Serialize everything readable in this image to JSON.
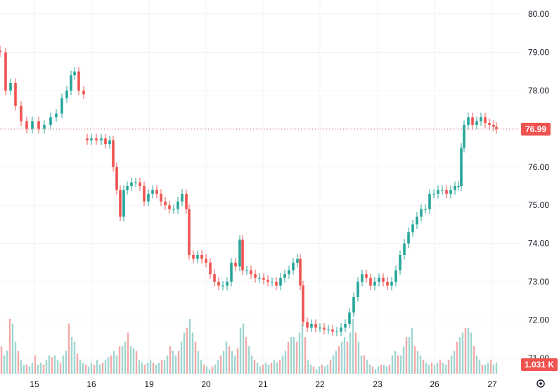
{
  "chart_data": {
    "type": "candlestick",
    "title": "",
    "y_axis": {
      "ticks": [
        "80.00",
        "79.00",
        "78.00",
        "77.00",
        "76.00",
        "75.00",
        "74.00",
        "73.00",
        "72.00",
        "71.00"
      ],
      "min": 70.75,
      "max": 80.3
    },
    "x_axis": {
      "ticks": [
        "15",
        "16",
        "19",
        "20",
        "21",
        "22",
        "23",
        "26",
        "27"
      ]
    },
    "last_price": "76.99",
    "last_volume": "1.031 K",
    "colors": {
      "up": "#26a69a",
      "down": "#ef5350",
      "up_vol": "#9fd6d0",
      "down_vol": "#f5a8a6",
      "grid": "#f0f3fa"
    },
    "grid": true,
    "series": [
      {
        "name": "",
        "points": [
          [
            0,
            79.0
          ],
          [
            8,
            78.0
          ],
          [
            15,
            78.2
          ],
          [
            22,
            77.6
          ],
          [
            30,
            77.2
          ],
          [
            38,
            77.0
          ],
          [
            46,
            77.2
          ],
          [
            55,
            77.0
          ],
          [
            63,
            77.1
          ],
          [
            72,
            77.3
          ],
          [
            80,
            77.4
          ],
          [
            88,
            77.8
          ],
          [
            95,
            78.0
          ],
          [
            101,
            78.4
          ],
          [
            106,
            78.5
          ],
          [
            112,
            78.0
          ],
          [
            119,
            77.9
          ]
        ]
      },
      {
        "name": "",
        "points": [
          [
            124,
            76.7
          ],
          [
            130,
            76.75
          ],
          [
            137,
            76.7
          ],
          [
            144,
            76.75
          ],
          [
            150,
            76.6
          ],
          [
            156,
            76.7
          ],
          [
            161,
            76.0
          ],
          [
            166,
            75.4
          ],
          [
            171,
            74.7
          ],
          [
            176,
            75.4
          ],
          [
            181,
            75.5
          ],
          [
            187,
            75.6
          ],
          [
            193,
            75.6
          ],
          [
            199,
            75.5
          ],
          [
            205,
            75.1
          ],
          [
            211,
            75.3
          ],
          [
            217,
            75.4
          ],
          [
            223,
            75.3
          ],
          [
            229,
            75.1
          ],
          [
            235,
            75.0
          ],
          [
            241,
            74.9
          ],
          [
            247,
            74.9
          ],
          [
            253,
            75.1
          ],
          [
            259,
            75.3
          ],
          [
            265,
            74.9
          ],
          [
            269,
            73.7
          ],
          [
            275,
            73.6
          ],
          [
            281,
            73.7
          ],
          [
            287,
            73.6
          ],
          [
            293,
            73.5
          ],
          [
            299,
            73.2
          ],
          [
            305,
            73.0
          ],
          [
            311,
            72.9
          ],
          [
            317,
            72.9
          ],
          [
            323,
            73.0
          ],
          [
            329,
            73.5
          ],
          [
            335,
            73.4
          ],
          [
            341,
            74.1
          ],
          [
            345,
            73.3
          ],
          [
            351,
            73.3
          ],
          [
            357,
            73.2
          ],
          [
            363,
            73.1
          ],
          [
            369,
            73.1
          ],
          [
            375,
            73.05
          ],
          [
            381,
            73.0
          ],
          [
            387,
            73.0
          ],
          [
            393,
            72.9
          ],
          [
            399,
            73.1
          ],
          [
            405,
            73.2
          ],
          [
            411,
            73.3
          ],
          [
            417,
            73.5
          ],
          [
            423,
            73.6
          ],
          [
            427,
            72.9
          ],
          [
            431,
            71.95
          ],
          [
            437,
            71.8
          ],
          [
            443,
            71.9
          ],
          [
            449,
            71.8
          ],
          [
            455,
            71.8
          ],
          [
            461,
            71.75
          ],
          [
            467,
            71.75
          ],
          [
            473,
            71.7
          ],
          [
            479,
            71.7
          ],
          [
            485,
            71.8
          ],
          [
            491,
            71.9
          ],
          [
            497,
            72.2
          ],
          [
            503,
            72.6
          ],
          [
            509,
            73.0
          ],
          [
            515,
            73.2
          ],
          [
            521,
            73.1
          ],
          [
            527,
            72.9
          ],
          [
            533,
            73.0
          ],
          [
            539,
            73.1
          ],
          [
            545,
            73.0
          ],
          [
            551,
            72.9
          ],
          [
            557,
            73.0
          ],
          [
            563,
            73.3
          ],
          [
            569,
            73.7
          ],
          [
            575,
            74.0
          ],
          [
            581,
            74.3
          ],
          [
            587,
            74.5
          ],
          [
            593,
            74.7
          ],
          [
            599,
            74.9
          ],
          [
            605,
            74.9
          ],
          [
            611,
            75.3
          ],
          [
            617,
            75.3
          ],
          [
            623,
            75.4
          ],
          [
            629,
            75.4
          ],
          [
            635,
            75.3
          ],
          [
            641,
            75.4
          ],
          [
            647,
            75.5
          ],
          [
            652,
            75.5
          ],
          [
            656,
            76.5
          ],
          [
            660,
            77.1
          ],
          [
            666,
            77.3
          ],
          [
            672,
            77.1
          ],
          [
            678,
            77.2
          ],
          [
            684,
            77.3
          ],
          [
            690,
            77.15
          ],
          [
            696,
            77.1
          ],
          [
            702,
            77.05
          ],
          [
            706,
            76.99
          ]
        ]
      }
    ],
    "volume_bars": [
      [
        2,
        0.3
      ],
      [
        6,
        0.2
      ],
      [
        10,
        0.25
      ],
      [
        14,
        0.6
      ],
      [
        18,
        0.55
      ],
      [
        22,
        0.35
      ],
      [
        26,
        0.25
      ],
      [
        30,
        0.15
      ],
      [
        34,
        0.1
      ],
      [
        38,
        0.1
      ],
      [
        42,
        0.08
      ],
      [
        46,
        0.12
      ],
      [
        50,
        0.2
      ],
      [
        54,
        0.1
      ],
      [
        58,
        0.12
      ],
      [
        62,
        0.1
      ],
      [
        66,
        0.15
      ],
      [
        70,
        0.2
      ],
      [
        74,
        0.18
      ],
      [
        78,
        0.2
      ],
      [
        82,
        0.15
      ],
      [
        86,
        0.12
      ],
      [
        90,
        0.2
      ],
      [
        94,
        0.25
      ],
      [
        98,
        0.55
      ],
      [
        102,
        0.4
      ],
      [
        106,
        0.35
      ],
      [
        110,
        0.22
      ],
      [
        114,
        0.15
      ],
      [
        118,
        0.12
      ],
      [
        122,
        0.1
      ],
      [
        126,
        0.08
      ],
      [
        130,
        0.12
      ],
      [
        134,
        0.1
      ],
      [
        138,
        0.15
      ],
      [
        142,
        0.1
      ],
      [
        146,
        0.12
      ],
      [
        150,
        0.15
      ],
      [
        154,
        0.18
      ],
      [
        158,
        0.2
      ],
      [
        162,
        0.25
      ],
      [
        166,
        0.2
      ],
      [
        170,
        0.3
      ],
      [
        174,
        0.3
      ],
      [
        178,
        0.35
      ],
      [
        182,
        0.45
      ],
      [
        186,
        0.3
      ],
      [
        190,
        0.28
      ],
      [
        194,
        0.25
      ],
      [
        198,
        0.15
      ],
      [
        202,
        0.12
      ],
      [
        206,
        0.1
      ],
      [
        210,
        0.12
      ],
      [
        214,
        0.15
      ],
      [
        218,
        0.12
      ],
      [
        222,
        0.1
      ],
      [
        226,
        0.12
      ],
      [
        230,
        0.15
      ],
      [
        234,
        0.15
      ],
      [
        238,
        0.2
      ],
      [
        242,
        0.3
      ],
      [
        246,
        0.25
      ],
      [
        250,
        0.2
      ],
      [
        254,
        0.25
      ],
      [
        258,
        0.35
      ],
      [
        262,
        0.45
      ],
      [
        266,
        0.5
      ],
      [
        270,
        0.6
      ],
      [
        274,
        0.45
      ],
      [
        278,
        0.35
      ],
      [
        282,
        0.25
      ],
      [
        286,
        0.15
      ],
      [
        290,
        0.1
      ],
      [
        294,
        0.08
      ],
      [
        298,
        0.05
      ],
      [
        302,
        0.08
      ],
      [
        306,
        0.1
      ],
      [
        310,
        0.15
      ],
      [
        314,
        0.2
      ],
      [
        318,
        0.25
      ],
      [
        322,
        0.35
      ],
      [
        326,
        0.3
      ],
      [
        330,
        0.25
      ],
      [
        334,
        0.2
      ],
      [
        338,
        0.28
      ],
      [
        342,
        0.5
      ],
      [
        346,
        0.55
      ],
      [
        350,
        0.4
      ],
      [
        354,
        0.3
      ],
      [
        358,
        0.2
      ],
      [
        362,
        0.15
      ],
      [
        366,
        0.12
      ],
      [
        370,
        0.08
      ],
      [
        374,
        0.1
      ],
      [
        378,
        0.12
      ],
      [
        382,
        0.1
      ],
      [
        386,
        0.12
      ],
      [
        390,
        0.15
      ],
      [
        394,
        0.12
      ],
      [
        398,
        0.15
      ],
      [
        402,
        0.2
      ],
      [
        406,
        0.25
      ],
      [
        410,
        0.35
      ],
      [
        414,
        0.4
      ],
      [
        418,
        0.4
      ],
      [
        422,
        0.35
      ],
      [
        426,
        0.45
      ],
      [
        430,
        0.55
      ],
      [
        434,
        0.4
      ],
      [
        438,
        0.15
      ],
      [
        442,
        0.1
      ],
      [
        446,
        0.08
      ],
      [
        450,
        0.05
      ],
      [
        454,
        0.08
      ],
      [
        458,
        0.1
      ],
      [
        462,
        0.08
      ],
      [
        466,
        0.1
      ],
      [
        470,
        0.15
      ],
      [
        474,
        0.2
      ],
      [
        478,
        0.25
      ],
      [
        482,
        0.3
      ],
      [
        486,
        0.35
      ],
      [
        490,
        0.4
      ],
      [
        494,
        0.35
      ],
      [
        498,
        0.45
      ],
      [
        502,
        0.6
      ],
      [
        506,
        0.45
      ],
      [
        510,
        0.35
      ],
      [
        514,
        0.2
      ],
      [
        518,
        0.2
      ],
      [
        522,
        0.15
      ],
      [
        526,
        0.1
      ],
      [
        530,
        0.08
      ],
      [
        534,
        0.05
      ],
      [
        538,
        0.08
      ],
      [
        542,
        0.1
      ],
      [
        546,
        0.1
      ],
      [
        550,
        0.08
      ],
      [
        554,
        0.1
      ],
      [
        558,
        0.2
      ],
      [
        562,
        0.25
      ],
      [
        566,
        0.2
      ],
      [
        570,
        0.2
      ],
      [
        574,
        0.3
      ],
      [
        578,
        0.4
      ],
      [
        582,
        0.4
      ],
      [
        586,
        0.5
      ],
      [
        590,
        0.3
      ],
      [
        594,
        0.25
      ],
      [
        598,
        0.2
      ],
      [
        602,
        0.15
      ],
      [
        606,
        0.12
      ],
      [
        610,
        0.1
      ],
      [
        614,
        0.12
      ],
      [
        618,
        0.1
      ],
      [
        622,
        0.12
      ],
      [
        626,
        0.15
      ],
      [
        630,
        0.12
      ],
      [
        634,
        0.1
      ],
      [
        638,
        0.15
      ],
      [
        642,
        0.2
      ],
      [
        646,
        0.25
      ],
      [
        650,
        0.35
      ],
      [
        654,
        0.4
      ],
      [
        658,
        0.45
      ],
      [
        662,
        0.5
      ],
      [
        666,
        0.5
      ],
      [
        670,
        0.45
      ],
      [
        674,
        0.3
      ],
      [
        678,
        0.2
      ],
      [
        682,
        0.15
      ],
      [
        686,
        0.1
      ],
      [
        690,
        0.1
      ],
      [
        694,
        0.12
      ],
      [
        698,
        0.15
      ],
      [
        702,
        0.1
      ],
      [
        706,
        0.12
      ]
    ]
  },
  "ui": {
    "settings_icon": "gear-icon"
  }
}
